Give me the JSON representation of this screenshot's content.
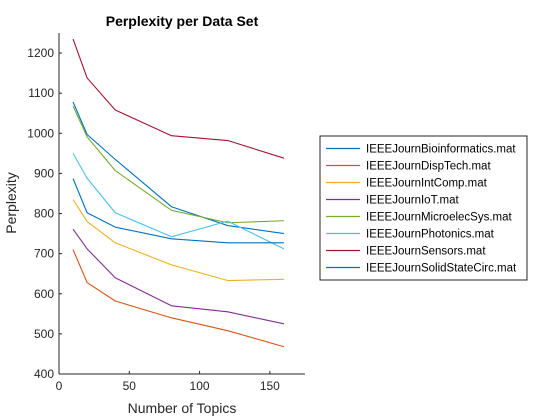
{
  "chart_data": {
    "type": "line",
    "title": "Perplexity per Data Set",
    "xlabel": "Number of Topics",
    "ylabel": "Perplexity",
    "xlim": [
      0,
      175
    ],
    "ylim": [
      400,
      1250
    ],
    "xticks": [
      0,
      50,
      100,
      150
    ],
    "yticks": [
      400,
      500,
      600,
      700,
      800,
      900,
      1000,
      1100,
      1200
    ],
    "x": [
      10,
      20,
      40,
      80,
      120,
      160
    ],
    "legend_position": "east-outside",
    "grid": false,
    "series": [
      {
        "name": "IEEEJournBioinformatics.mat",
        "color": "#0072BD",
        "values": [
          1078,
          997,
          935,
          817,
          770,
          750
        ]
      },
      {
        "name": "IEEEJournDispTech.mat",
        "color": "#D95319",
        "values": [
          710,
          628,
          582,
          540,
          508,
          468
        ]
      },
      {
        "name": "IEEEJournIntComp.mat",
        "color": "#EDB120",
        "values": [
          835,
          780,
          727,
          672,
          633,
          636
        ]
      },
      {
        "name": "IEEEJournIoT.mat",
        "color": "#7E2F8E",
        "values": [
          761,
          712,
          640,
          570,
          555,
          525
        ]
      },
      {
        "name": "IEEEJournMicroelecSys.mat",
        "color": "#77AC30",
        "values": [
          1068,
          991,
          907,
          808,
          777,
          782
        ]
      },
      {
        "name": "IEEEJournPhotonics.mat",
        "color": "#4DBEEE",
        "values": [
          950,
          888,
          802,
          742,
          781,
          712
        ]
      },
      {
        "name": "IEEEJournSensors.mat",
        "color": "#A2142F",
        "values": [
          1235,
          1138,
          1058,
          994,
          982,
          938
        ]
      },
      {
        "name": "IEEEJournSolidStateCirc.mat",
        "color": "#0072BD",
        "values": [
          887,
          802,
          766,
          737,
          727,
          727
        ]
      }
    ]
  }
}
